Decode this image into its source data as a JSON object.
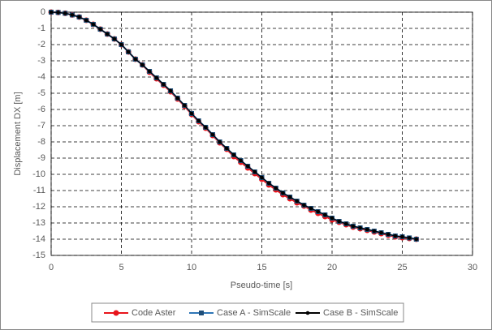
{
  "chart_data": {
    "type": "line",
    "x_label": "Pseudo-time [s]",
    "y_label": "Displacement DX [m]",
    "x": [
      0,
      0.5,
      1,
      1.5,
      2,
      2.5,
      3,
      3.5,
      4,
      4.5,
      5,
      5.5,
      6,
      6.5,
      7,
      7.5,
      8,
      8.5,
      9,
      9.5,
      10,
      10.5,
      11,
      11.5,
      12,
      12.5,
      13,
      13.5,
      14,
      14.5,
      15,
      15.5,
      16,
      16.5,
      17,
      17.5,
      18,
      18.5,
      19,
      19.5,
      20,
      20.5,
      21,
      21.5,
      22,
      22.5,
      23,
      23.5,
      24,
      24.5,
      25,
      25.5,
      26
    ],
    "series": [
      {
        "name": "Code Aster",
        "color": "#e8141b",
        "marker": "circle",
        "values": [
          0,
          -0.02,
          -0.07,
          -0.17,
          -0.3,
          -0.5,
          -0.75,
          -1.05,
          -1.35,
          -1.65,
          -2.0,
          -2.45,
          -2.9,
          -3.25,
          -3.7,
          -4.1,
          -4.5,
          -4.9,
          -5.35,
          -5.8,
          -6.3,
          -6.75,
          -7.15,
          -7.6,
          -8.05,
          -8.45,
          -8.9,
          -9.25,
          -9.6,
          -9.95,
          -10.3,
          -10.65,
          -10.95,
          -11.25,
          -11.5,
          -11.75,
          -11.95,
          -12.2,
          -12.4,
          -12.6,
          -12.8,
          -12.95,
          -13.1,
          -13.25,
          -13.35,
          -13.45,
          -13.55,
          -13.65,
          -13.75,
          -13.85,
          -13.9,
          -13.95,
          -14.0
        ]
      },
      {
        "name": "Case A - SimScale",
        "color": "#2e75b6",
        "marker": "square",
        "marker_color": "#1f4e79",
        "values": [
          0,
          -0.02,
          -0.07,
          -0.17,
          -0.3,
          -0.5,
          -0.75,
          -1.05,
          -1.35,
          -1.65,
          -2.0,
          -2.45,
          -2.9,
          -3.25,
          -3.65,
          -4.05,
          -4.45,
          -4.85,
          -5.3,
          -5.75,
          -6.25,
          -6.7,
          -7.1,
          -7.55,
          -8.0,
          -8.4,
          -8.8,
          -9.15,
          -9.5,
          -9.85,
          -10.2,
          -10.55,
          -10.85,
          -11.15,
          -11.4,
          -11.65,
          -11.9,
          -12.1,
          -12.3,
          -12.5,
          -12.7,
          -12.9,
          -13.05,
          -13.2,
          -13.3,
          -13.4,
          -13.5,
          -13.6,
          -13.7,
          -13.8,
          -13.85,
          -13.92,
          -14.0
        ]
      },
      {
        "name": "Case B - SimScale",
        "color": "#000000",
        "marker": "circle",
        "values": [
          0,
          -0.02,
          -0.07,
          -0.17,
          -0.3,
          -0.5,
          -0.75,
          -1.05,
          -1.35,
          -1.65,
          -2.0,
          -2.45,
          -2.9,
          -3.25,
          -3.65,
          -4.05,
          -4.45,
          -4.85,
          -5.3,
          -5.75,
          -6.25,
          -6.7,
          -7.1,
          -7.55,
          -8.0,
          -8.4,
          -8.8,
          -9.15,
          -9.5,
          -9.85,
          -10.2,
          -10.55,
          -10.85,
          -11.15,
          -11.4,
          -11.65,
          -11.9,
          -12.1,
          -12.3,
          -12.5,
          -12.7,
          -12.9,
          -13.05,
          -13.2,
          -13.3,
          -13.4,
          -13.5,
          -13.6,
          -13.7,
          -13.8,
          -13.85,
          -13.92,
          -14.0
        ]
      }
    ],
    "xlim": [
      0,
      30
    ],
    "xticks": [
      0,
      5,
      10,
      15,
      20,
      25,
      30
    ],
    "ylim": [
      -15,
      0
    ],
    "yticks": [
      0,
      -1,
      -2,
      -3,
      -4,
      -5,
      -6,
      -7,
      -8,
      -9,
      -10,
      -11,
      -12,
      -13,
      -14,
      -15
    ],
    "grid": true,
    "legend": "bottom"
  }
}
